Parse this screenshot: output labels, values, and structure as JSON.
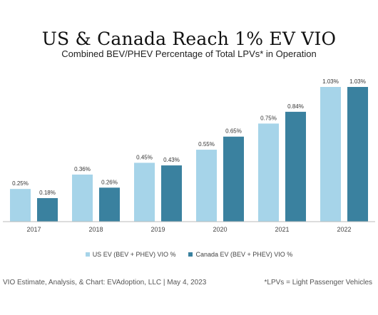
{
  "title": "US & Canada Reach 1% EV VIO",
  "subtitle": "Combined BEV/PHEV Percentage of Total LPVs* in Operation",
  "colors": {
    "us": "#a6d4e9",
    "canada": "#3a819f",
    "axis": "#bbbbbb"
  },
  "footer": {
    "source": "VIO Estimate, Analysis, & Chart: EVAdoption, LLC | May 4, 2023",
    "note": "*LPVs = Light Passenger Vehicles"
  },
  "chart_data": {
    "type": "bar",
    "title": "US & Canada Reach 1% EV VIO",
    "subtitle": "Combined BEV/PHEV Percentage of Total LPVs* in Operation",
    "categories": [
      "2017",
      "2018",
      "2019",
      "2020",
      "2021",
      "2022"
    ],
    "series": [
      {
        "name": "US EV (BEV + PHEV) VIO %",
        "values": [
          0.25,
          0.36,
          0.45,
          0.55,
          0.75,
          1.03
        ],
        "labels": [
          "0.25%",
          "0.36%",
          "0.45%",
          "0.55%",
          "0.75%",
          "1.03%"
        ]
      },
      {
        "name": "Canada EV (BEV + PHEV) VIO %",
        "values": [
          0.18,
          0.26,
          0.43,
          0.65,
          0.84,
          1.03
        ],
        "labels": [
          "0.18%",
          "0.26%",
          "0.43%",
          "0.65%",
          "0.84%",
          "1.03%"
        ]
      }
    ],
    "xlabel": "",
    "ylabel": "",
    "ylim": [
      0,
      1.1
    ],
    "grid": false,
    "legend": "bottom"
  }
}
